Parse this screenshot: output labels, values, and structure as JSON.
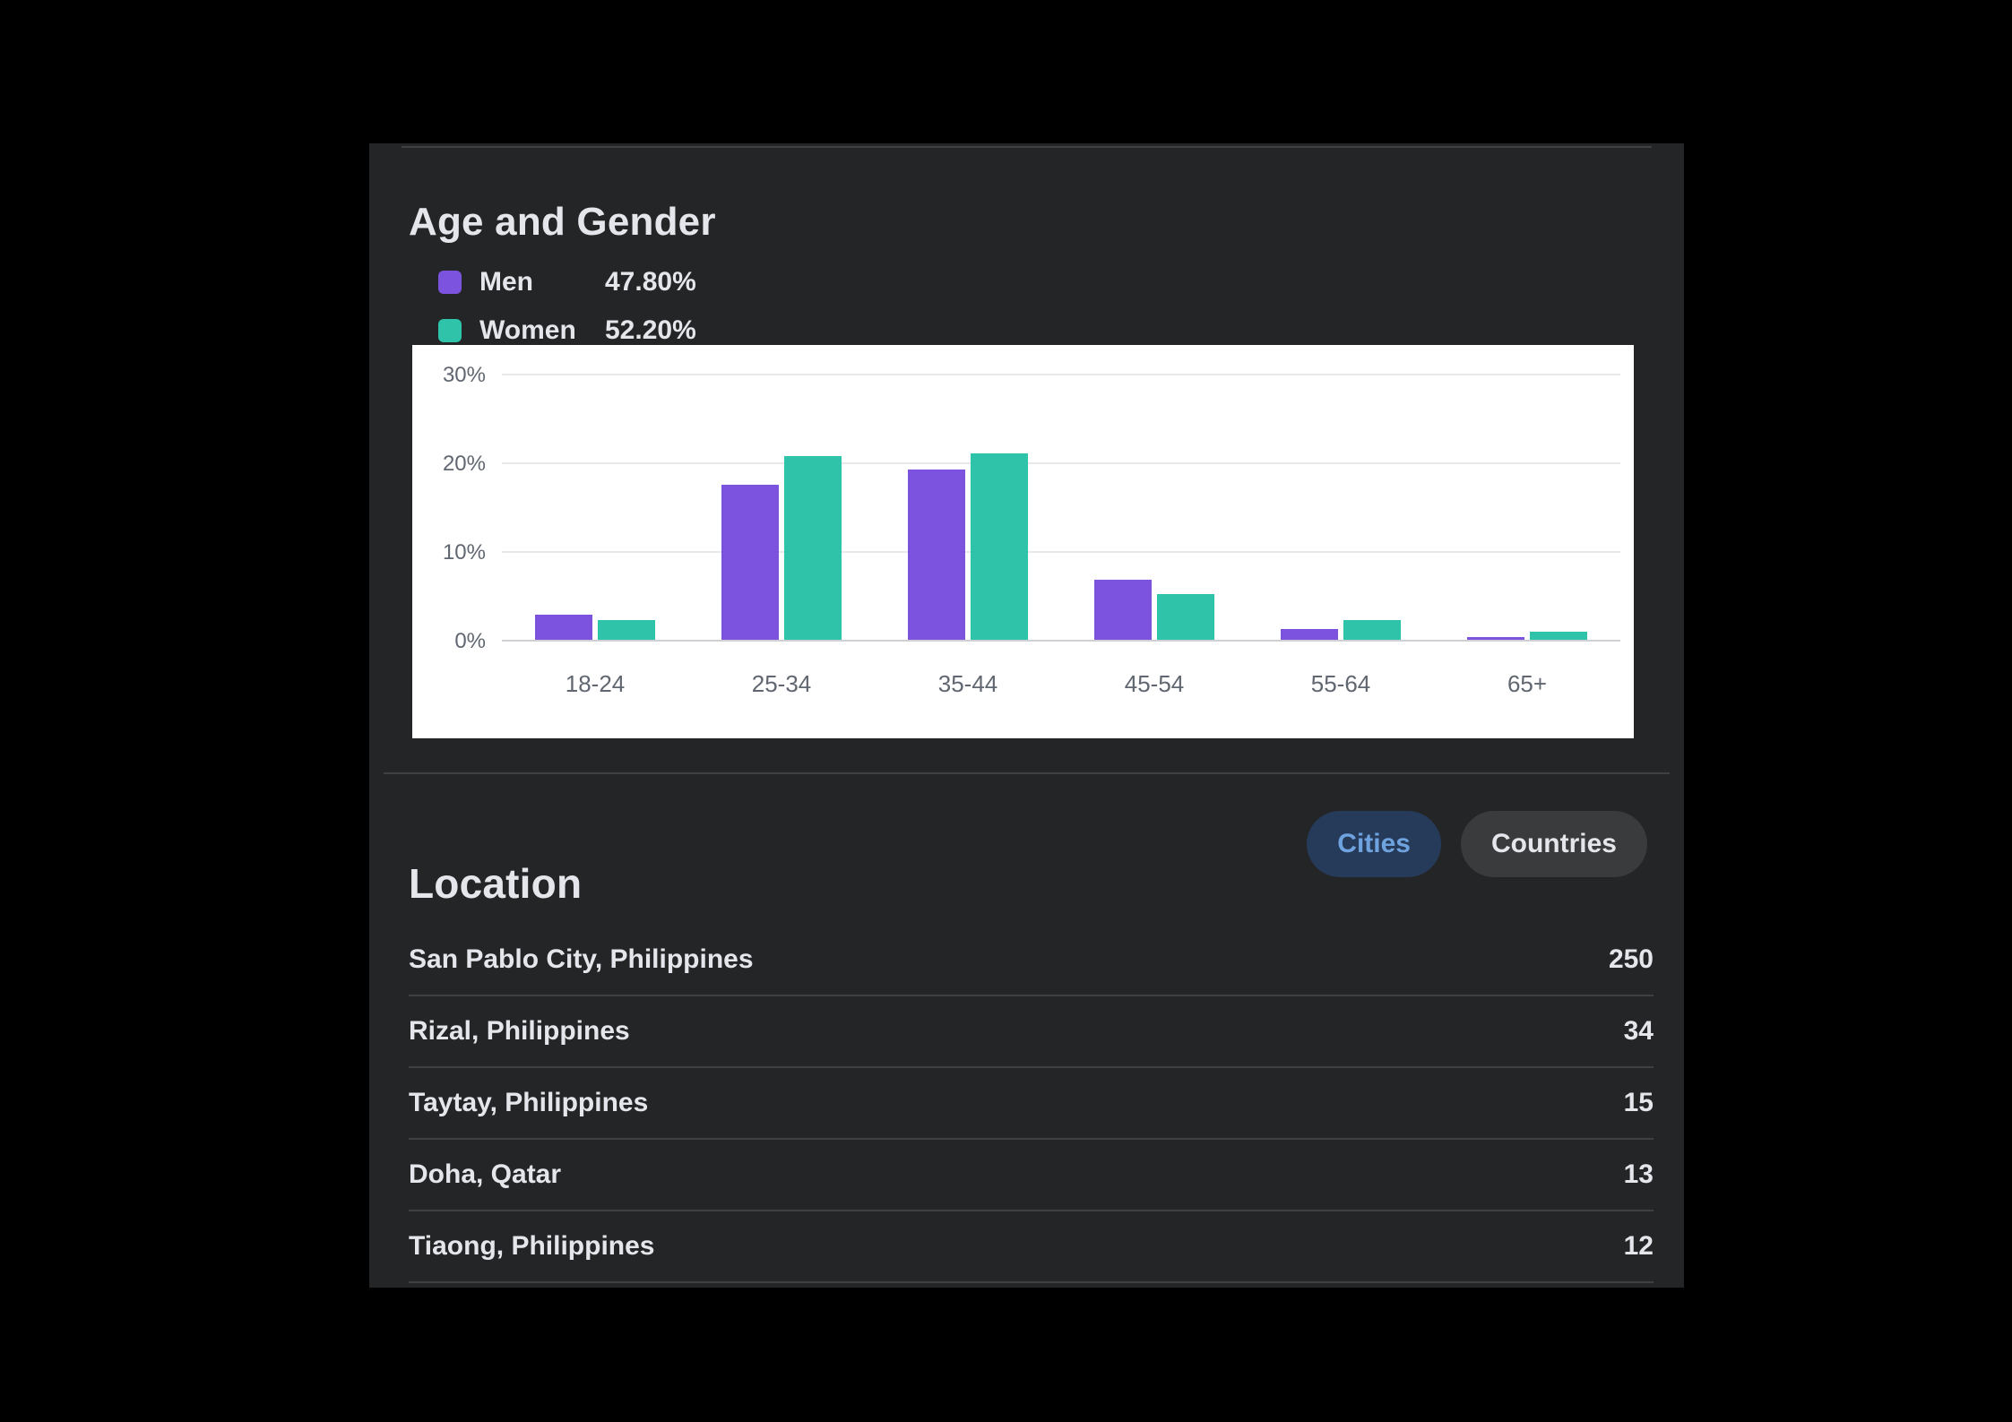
{
  "panel": {
    "age_gender": {
      "title": "Age and Gender",
      "legend": [
        {
          "label": "Men",
          "value": "47.80%"
        },
        {
          "label": "Women",
          "value": "52.20%"
        }
      ]
    },
    "location": {
      "title": "Location",
      "tabs": [
        {
          "label": "Cities",
          "active": true
        },
        {
          "label": "Countries",
          "active": false
        }
      ],
      "rows": [
        {
          "name": "San Pablo City, Philippines",
          "value": "250"
        },
        {
          "name": "Rizal, Philippines",
          "value": "34"
        },
        {
          "name": "Taytay, Philippines",
          "value": "15"
        },
        {
          "name": "Doha, Qatar",
          "value": "13"
        },
        {
          "name": "Tiaong, Philippines",
          "value": "12"
        }
      ]
    }
  },
  "chart_data": {
    "type": "bar",
    "title": "Age and Gender",
    "categories": [
      "18-24",
      "25-34",
      "35-44",
      "45-54",
      "55-64",
      "65+"
    ],
    "series": [
      {
        "name": "Men",
        "color": "#7C53DE",
        "values": [
          2.8,
          17.5,
          19.2,
          6.8,
          1.2,
          0.3
        ]
      },
      {
        "name": "Women",
        "color": "#2FC4A9",
        "values": [
          2.2,
          20.7,
          21.0,
          5.2,
          2.2,
          0.9
        ]
      }
    ],
    "xlabel": "",
    "ylabel": "",
    "ylim": [
      0,
      30
    ],
    "yticks": [
      "30%",
      "20%",
      "10%",
      "0%"
    ],
    "grid": true,
    "legend_position": "top-left"
  },
  "colors": {
    "accent_purple": "#7C53DE",
    "accent_teal": "#2FC4A9",
    "panel_bg": "#242526",
    "card_bg": "#FFFFFF",
    "text_primary": "#E4E6EB",
    "text_axis": "#606770",
    "divider": "#3E4042",
    "grid_line": "#E7E8EA",
    "zero_line": "#CED0D4",
    "tab_active_bg": "#263A59",
    "tab_active_text": "#6FA3E0",
    "tab_inactive_bg": "#3A3B3C"
  }
}
